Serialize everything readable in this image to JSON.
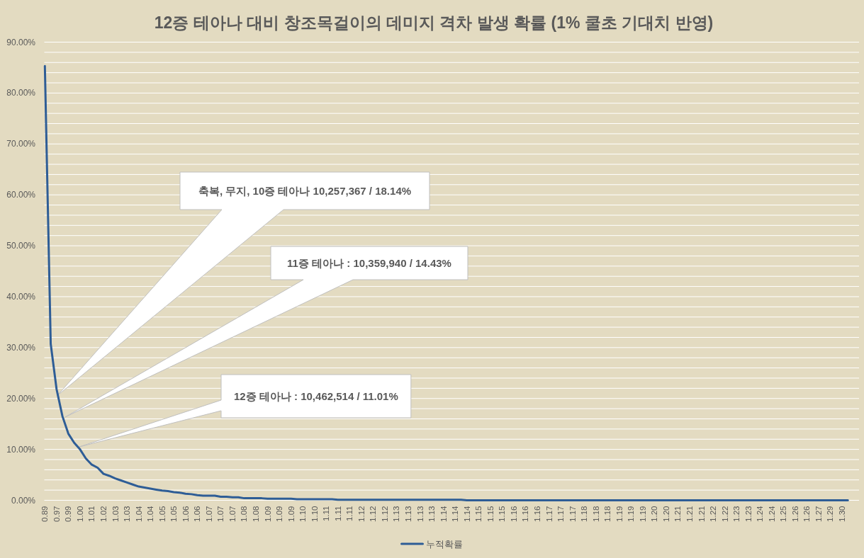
{
  "chart_data": {
    "type": "line",
    "title": "12증 테아나 대비 창조목걸이의 데미지 격차 발생 확률 (1% 쿨초 기대치 반영)",
    "categories": [
      "0.89",
      null,
      "0.97",
      null,
      "0.99",
      null,
      "1.00",
      null,
      "1.01",
      null,
      "1.02",
      null,
      "1.03",
      null,
      "1.03",
      null,
      "1.04",
      null,
      "1.04",
      null,
      "1.05",
      null,
      "1.05",
      null,
      "1.06",
      null,
      "1.06",
      null,
      "1.07",
      null,
      "1.07",
      null,
      "1.07",
      null,
      "1.08",
      null,
      "1.08",
      null,
      "1.09",
      null,
      "1.09",
      null,
      "1.09",
      null,
      "1.10",
      null,
      "1.10",
      null,
      "1.11",
      null,
      "1.11",
      null,
      "1.11",
      null,
      "1.12",
      null,
      "1.12",
      null,
      "1.12",
      null,
      "1.13",
      null,
      "1.13",
      null,
      "1.13",
      null,
      "1.13",
      null,
      "1.14",
      null,
      "1.14",
      null,
      "1.14",
      null,
      "1.15",
      null,
      "1.15",
      null,
      "1.15",
      null,
      "1.16",
      null,
      "1.16",
      null,
      "1.16",
      null,
      "1.17",
      null,
      "1.17",
      null,
      "1.17",
      null,
      "1.18",
      null,
      "1.18",
      null,
      "1.18",
      null,
      "1.19",
      null,
      "1.19",
      null,
      "1.19",
      null,
      "1.20",
      null,
      "1.20",
      null,
      "1.21",
      null,
      "1.21",
      null,
      "1.21",
      null,
      "1.22",
      null,
      "1.22",
      null,
      "1.23",
      null,
      "1.23",
      null,
      "1.24",
      null,
      "1.24",
      null,
      "1.25",
      null,
      "1.26",
      null,
      "1.26",
      null,
      "1.27",
      null,
      "1.29",
      null,
      "1.30",
      null
    ],
    "series": [
      {
        "name": "누적확률",
        "color": "#2e5d96",
        "values": [
          85.3,
          30.7,
          21.8,
          16.5,
          13.1,
          11.3,
          10.0,
          8.2,
          7.0,
          6.4,
          5.2,
          4.8,
          4.3,
          3.9,
          3.5,
          3.1,
          2.7,
          2.5,
          2.3,
          2.1,
          1.9,
          1.8,
          1.6,
          1.5,
          1.3,
          1.2,
          1.0,
          0.9,
          0.9,
          0.9,
          0.7,
          0.7,
          0.6,
          0.6,
          0.4,
          0.4,
          0.4,
          0.4,
          0.3,
          0.3,
          0.3,
          0.3,
          0.3,
          0.2,
          0.2,
          0.2,
          0.2,
          0.2,
          0.2,
          0.2,
          0.1,
          0.1,
          0.1,
          0.1,
          0.1,
          0.1,
          0.1,
          0.1,
          0.1,
          0.1,
          0.1,
          0.1,
          0.1,
          0.1,
          0.1,
          0.1,
          0.1,
          0.1,
          0.1,
          0.1,
          0.1,
          0.1,
          0,
          0,
          0,
          0,
          0,
          0,
          0,
          0,
          0,
          0,
          0,
          0,
          0,
          0,
          0,
          0,
          0,
          0,
          0,
          0,
          0,
          0,
          0,
          0,
          0,
          0,
          0,
          0,
          0,
          0,
          0,
          0,
          0,
          0,
          0,
          0,
          0,
          0,
          0,
          0,
          0,
          0,
          0,
          0,
          0,
          0,
          0,
          0,
          0,
          0,
          0,
          0,
          0,
          0,
          0,
          0,
          0,
          0,
          0,
          0,
          0,
          0,
          0,
          0,
          0,
          0
        ]
      }
    ],
    "ylim": [
      0,
      90
    ],
    "yticks": [
      {
        "value": 0,
        "label": "0.00%"
      },
      {
        "value": 2,
        "label": null
      },
      {
        "value": 4,
        "label": null
      },
      {
        "value": 6,
        "label": null
      },
      {
        "value": 8,
        "label": null
      },
      {
        "value": 10,
        "label": "10.00%"
      },
      {
        "value": 12,
        "label": null
      },
      {
        "value": 14,
        "label": null
      },
      {
        "value": 16,
        "label": null
      },
      {
        "value": 18,
        "label": null
      },
      {
        "value": 20,
        "label": "20.00%"
      },
      {
        "value": 22,
        "label": null
      },
      {
        "value": 24,
        "label": null
      },
      {
        "value": 26,
        "label": null
      },
      {
        "value": 28,
        "label": null
      },
      {
        "value": 30,
        "label": "30.00%"
      },
      {
        "value": 32,
        "label": null
      },
      {
        "value": 34,
        "label": null
      },
      {
        "value": 36,
        "label": null
      },
      {
        "value": 38,
        "label": null
      },
      {
        "value": 40,
        "label": "40.00%"
      },
      {
        "value": 42,
        "label": null
      },
      {
        "value": 44,
        "label": null
      },
      {
        "value": 46,
        "label": null
      },
      {
        "value": 48,
        "label": null
      },
      {
        "value": 50,
        "label": "50.00%"
      },
      {
        "value": 52,
        "label": null
      },
      {
        "value": 54,
        "label": null
      },
      {
        "value": 56,
        "label": null
      },
      {
        "value": 58,
        "label": null
      },
      {
        "value": 60,
        "label": "60.00%"
      },
      {
        "value": 62,
        "label": null
      },
      {
        "value": 64,
        "label": null
      },
      {
        "value": 66,
        "label": null
      },
      {
        "value": 68,
        "label": null
      },
      {
        "value": 70,
        "label": "70.00%"
      },
      {
        "value": 72,
        "label": null
      },
      {
        "value": 74,
        "label": null
      },
      {
        "value": 76,
        "label": null
      },
      {
        "value": 78,
        "label": null
      },
      {
        "value": 80,
        "label": "80.00%"
      },
      {
        "value": 82,
        "label": null
      },
      {
        "value": 84,
        "label": null
      },
      {
        "value": 86,
        "label": null
      },
      {
        "value": 88,
        "label": null
      },
      {
        "value": 90,
        "label": "90.00%"
      }
    ],
    "grid": "y",
    "legend": "bottom",
    "annotations": [
      "축복, 무지, 10증 테아나 10,257,367 / 18.14%",
      "11증 테아나 : 10,359,940 / 14.43%",
      "12증 테아나 : 10,462,514 / 11.01%"
    ]
  }
}
